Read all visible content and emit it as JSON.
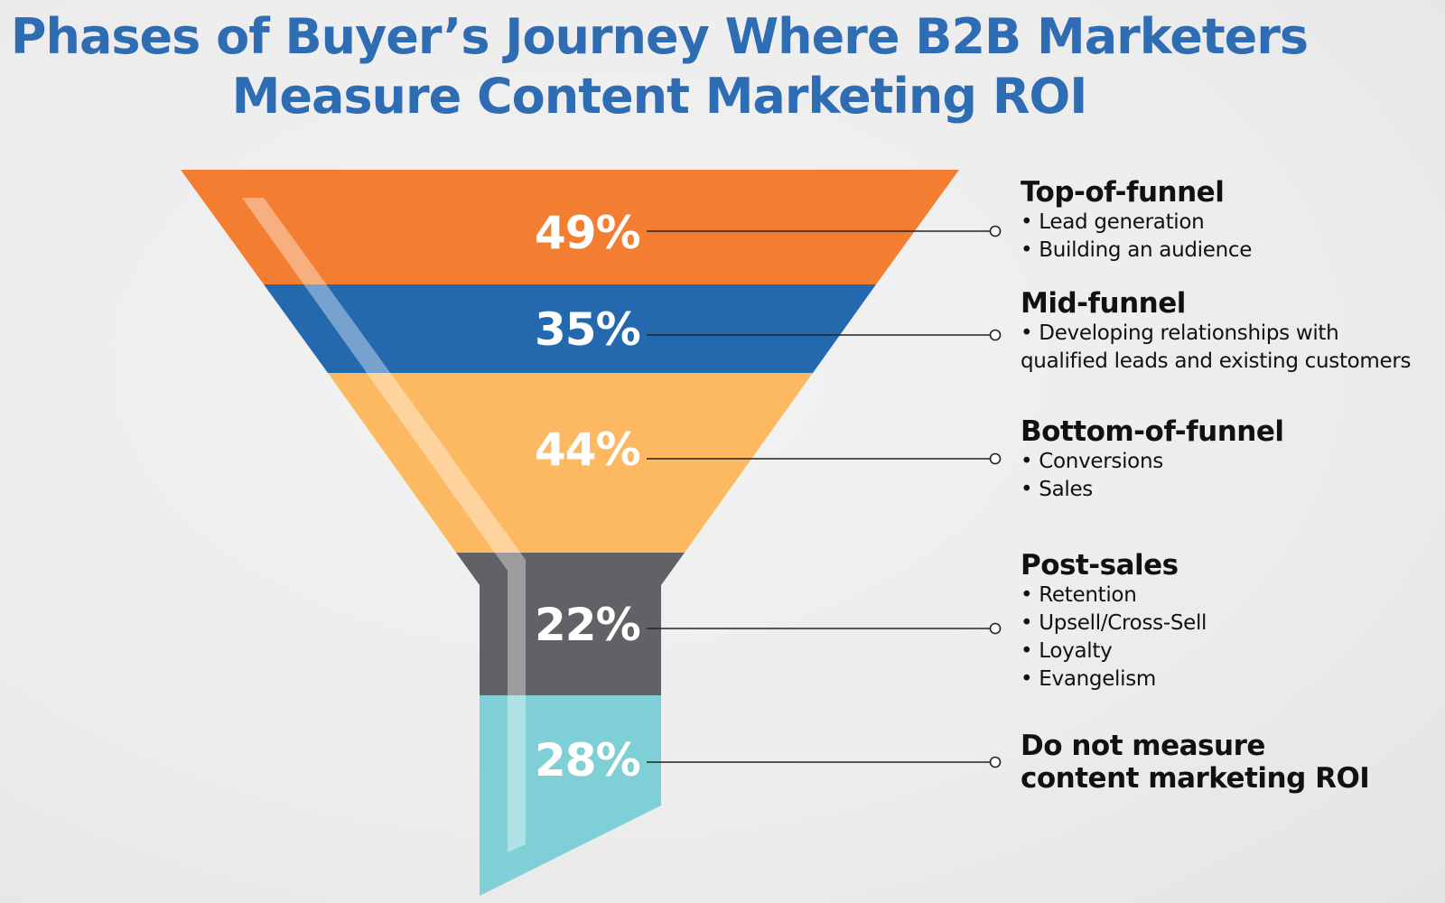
{
  "title": {
    "line1": "Phases of Buyer’s Journey Where B2B Marketers",
    "line2": "Measure Content Marketing ROI"
  },
  "stages": [
    {
      "percent": "49%",
      "value": 49,
      "color": "#f37e31",
      "heading": "Top-of-funnel",
      "items": [
        "• Lead generation",
        "• Building an audience"
      ]
    },
    {
      "percent": "35%",
      "value": 35,
      "color": "#2469ae",
      "heading": "Mid-funnel",
      "items": [
        "• Developing relationships with",
        "qualified leads and existing customers"
      ]
    },
    {
      "percent": "44%",
      "value": 44,
      "color": "#fdb962",
      "heading": "Bottom-of-funnel",
      "items": [
        "• Conversions",
        "• Sales"
      ]
    },
    {
      "percent": "22%",
      "value": 22,
      "color": "#616266",
      "heading": "Post-sales",
      "items": [
        "• Retention",
        "• Upsell/Cross-Sell",
        "• Loyalty",
        "• Evangelism"
      ]
    },
    {
      "percent": "28%",
      "value": 28,
      "color": "#7fd0d6",
      "heading": "Do not measure",
      "heading2": "content marketing ROI",
      "items": []
    }
  ]
}
